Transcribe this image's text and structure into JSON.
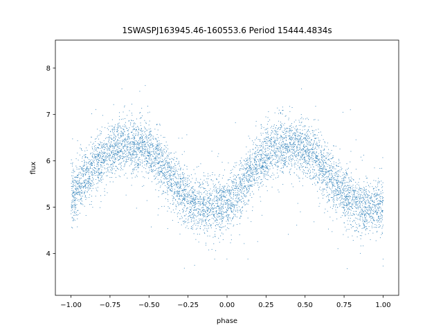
{
  "chart_data": {
    "type": "scatter",
    "title": "1SWASPJ163945.46-160553.6 Period 15444.4834s",
    "xlabel": "phase",
    "ylabel": "flux",
    "xlim": [
      -1.1,
      1.1
    ],
    "ylim": [
      3.1,
      8.6
    ],
    "xticks": [
      -1.0,
      -0.75,
      -0.5,
      -0.25,
      0.0,
      0.25,
      0.5,
      0.75,
      1.0
    ],
    "xtick_labels": [
      "−1.00",
      "−0.75",
      "−0.50",
      "−0.25",
      "0.00",
      "0.25",
      "0.50",
      "0.75",
      "1.00"
    ],
    "yticks": [
      4,
      5,
      6,
      7,
      8
    ],
    "ytick_labels": [
      "4",
      "5",
      "6",
      "7",
      "8"
    ],
    "grid": false,
    "marker_color": "#1f77b4",
    "series": [
      {
        "phase": [
          -1.0,
          -0.95,
          -0.9,
          -0.85,
          -0.8,
          -0.75,
          -0.7,
          -0.65,
          -0.6,
          -0.55,
          -0.5,
          -0.45,
          -0.4,
          -0.35,
          -0.3,
          -0.25,
          -0.2,
          -0.15,
          -0.1,
          -0.05,
          0.0,
          0.05,
          0.1,
          0.15,
          0.2,
          0.25,
          0.3,
          0.35,
          0.4,
          0.45,
          0.5,
          0.55,
          0.6,
          0.65,
          0.7,
          0.75,
          0.8,
          0.85,
          0.9,
          0.95,
          1.0
        ],
        "mean_flux": [
          5.2,
          5.45,
          5.7,
          5.9,
          6.05,
          6.2,
          6.3,
          6.35,
          6.35,
          6.3,
          6.2,
          6.05,
          5.85,
          5.6,
          5.4,
          5.2,
          5.05,
          4.98,
          5.0,
          5.05,
          5.1,
          5.25,
          5.5,
          5.75,
          5.95,
          6.1,
          6.25,
          6.32,
          6.35,
          6.33,
          6.25,
          6.1,
          5.9,
          5.7,
          5.5,
          5.3,
          5.15,
          5.05,
          5.0,
          5.02,
          5.1
        ],
        "scatter_sigma": 0.3,
        "n_points": 6500
      }
    ]
  }
}
